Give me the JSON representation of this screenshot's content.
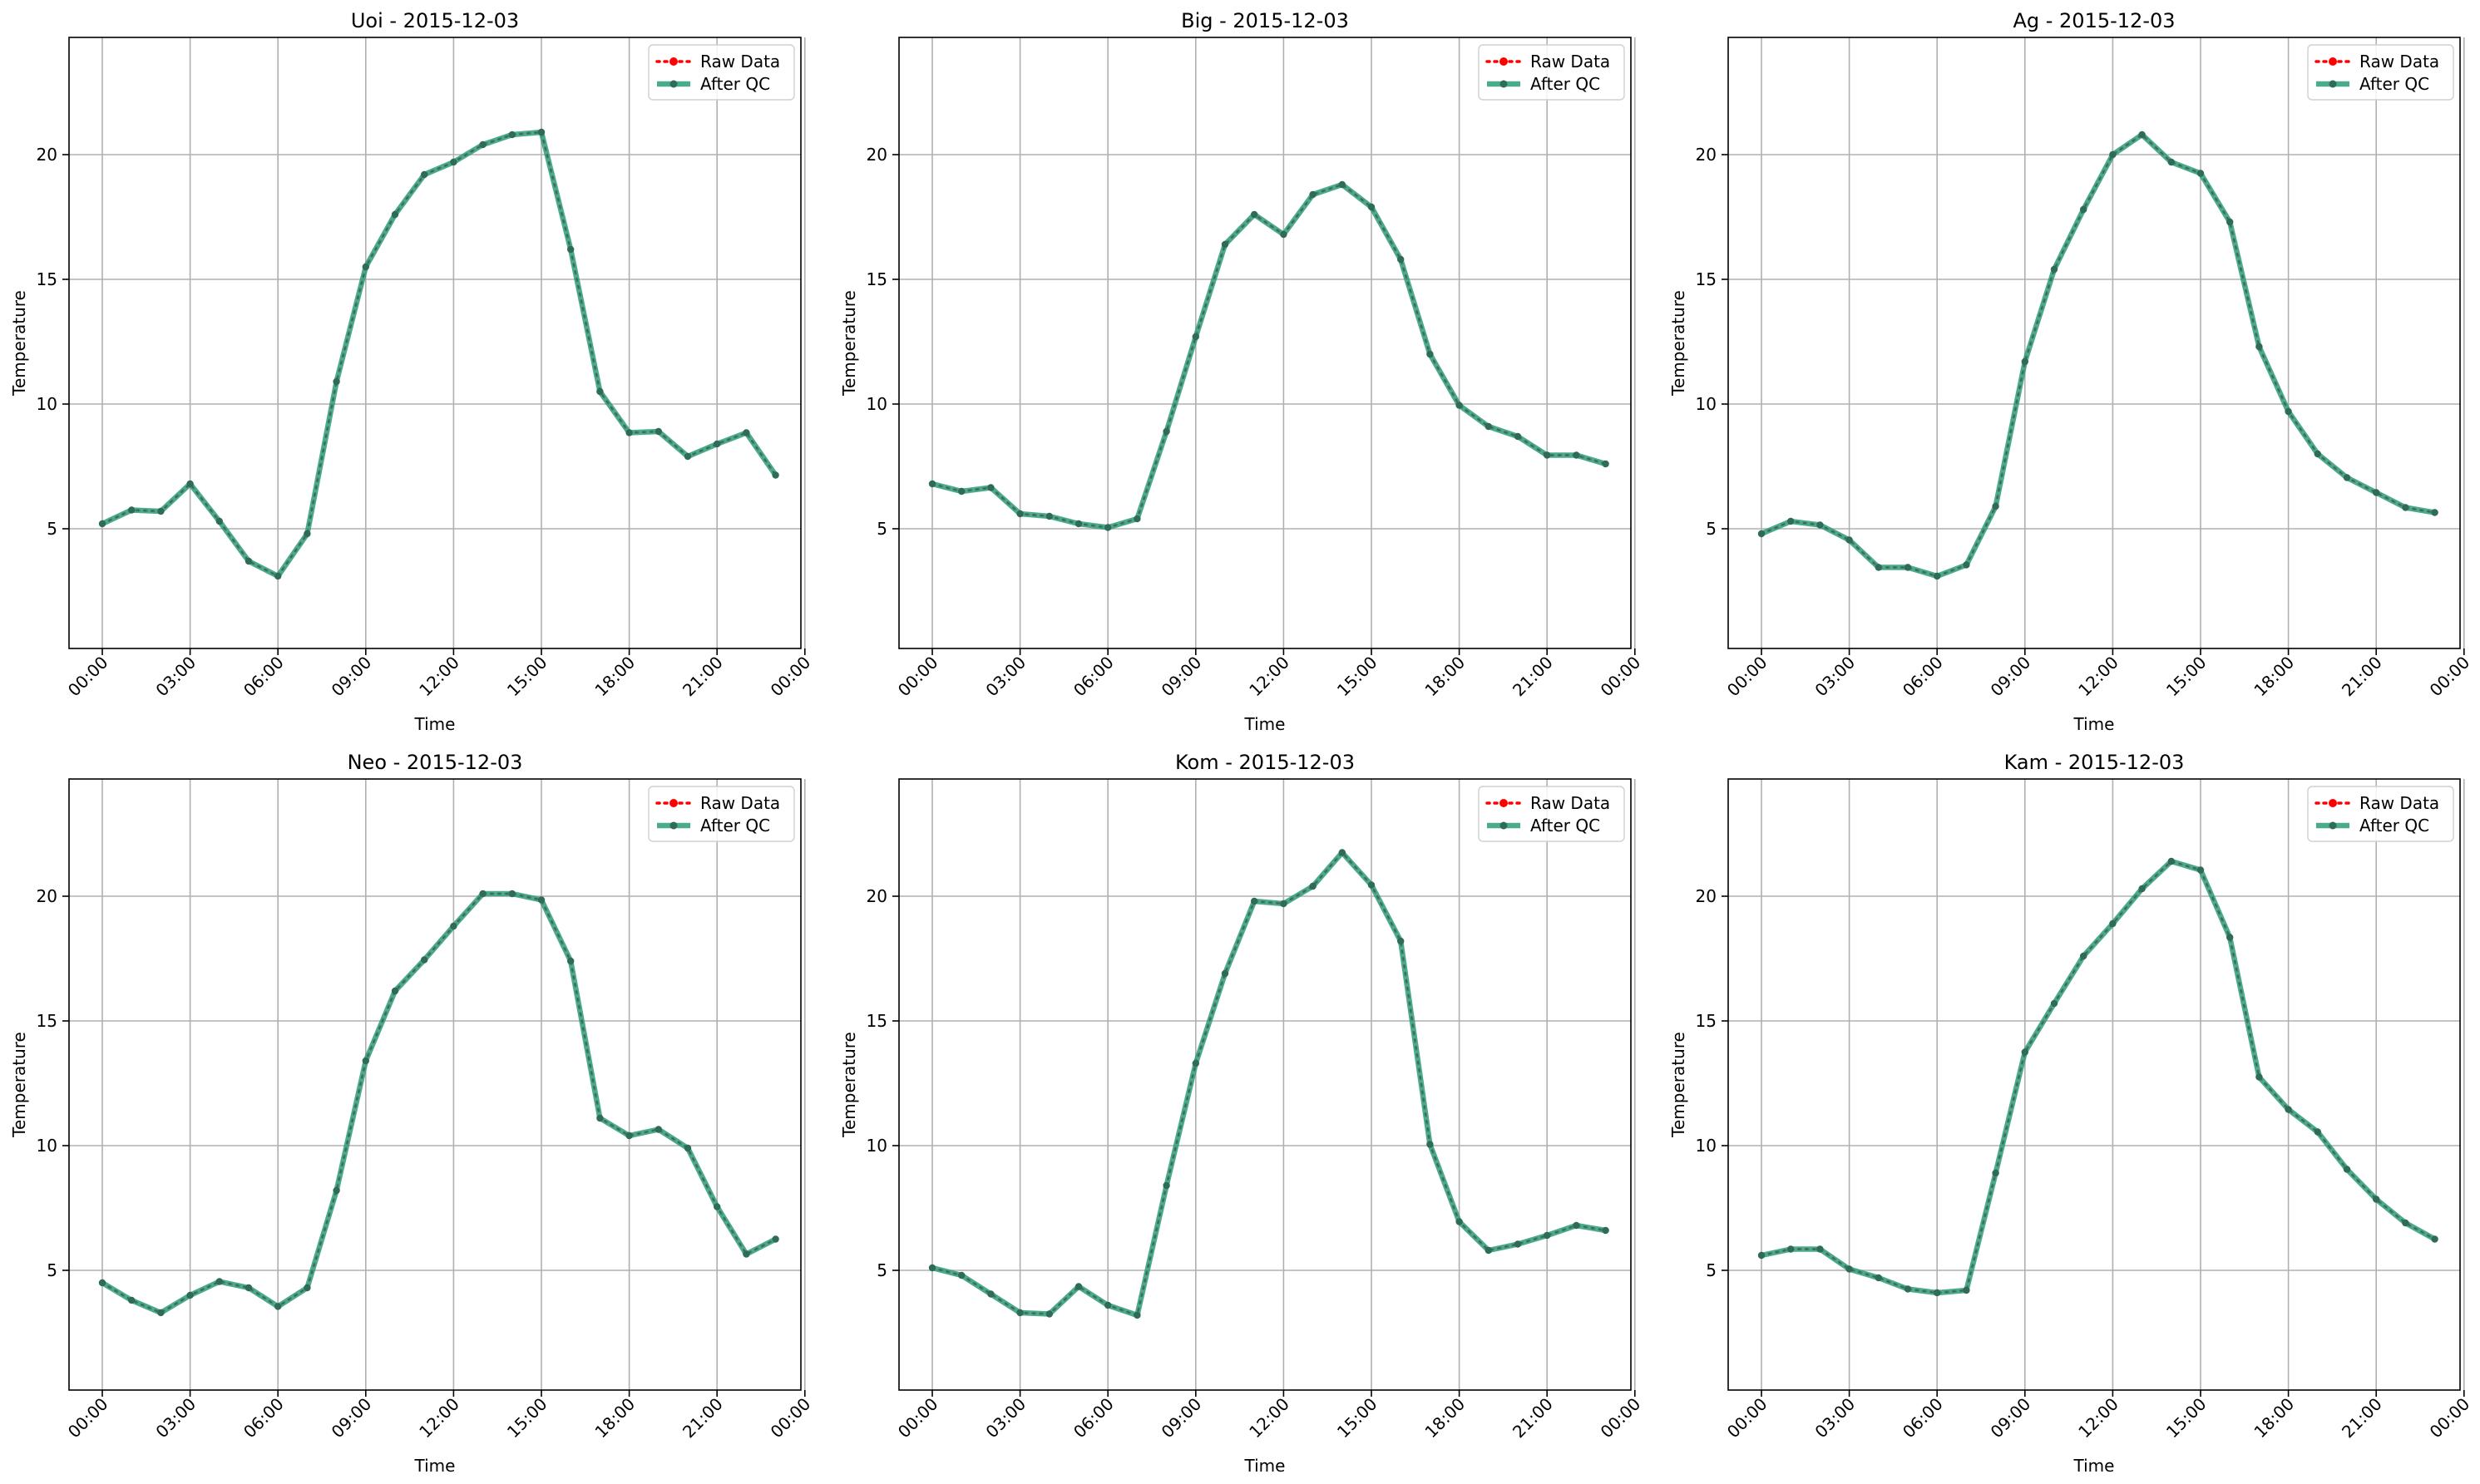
{
  "figure": {
    "xlabel": "Time",
    "ylabel": "Temperature",
    "legend": {
      "raw_label": "Raw Data",
      "qc_label": "After QC",
      "position": "top-right"
    },
    "colors": {
      "raw": "#ff0000",
      "qc": "#2a9d78",
      "marker": "#2f6b5a",
      "grid": "#b0b0b0",
      "axis": "#000000"
    }
  },
  "chart_data": [
    {
      "type": "line",
      "title": "Uoi - 2015-12-03",
      "x": [
        "00:00",
        "01:00",
        "02:00",
        "03:00",
        "04:00",
        "05:00",
        "06:00",
        "07:00",
        "08:00",
        "09:00",
        "10:00",
        "11:00",
        "12:00",
        "13:00",
        "14:00",
        "15:00",
        "16:00",
        "17:00",
        "18:00",
        "19:00",
        "20:00",
        "21:00",
        "22:00",
        "23:00"
      ],
      "series": [
        {
          "name": "Raw Data",
          "values": [
            5.2,
            5.75,
            5.7,
            6.8,
            5.3,
            3.7,
            3.1,
            4.8,
            10.9,
            15.5,
            17.6,
            19.2,
            19.7,
            20.4,
            20.8,
            20.9,
            16.2,
            10.5,
            8.85,
            8.9,
            7.9,
            8.4,
            8.85,
            7.15
          ]
        },
        {
          "name": "After QC",
          "values": [
            5.2,
            5.75,
            5.7,
            6.8,
            5.3,
            3.7,
            3.1,
            4.8,
            10.9,
            15.5,
            17.6,
            19.2,
            19.7,
            20.4,
            20.8,
            20.9,
            16.2,
            10.5,
            8.85,
            8.9,
            7.9,
            8.4,
            8.85,
            7.15
          ]
        }
      ],
      "xlabel": "Time",
      "ylabel": "Temperature",
      "xticks": [
        "00:00",
        "03:00",
        "06:00",
        "09:00",
        "12:00",
        "15:00",
        "18:00",
        "21:00",
        "00:00"
      ],
      "yticks": [
        5,
        10,
        15,
        20
      ],
      "ylim": [
        0.2,
        24.7
      ],
      "grid": true,
      "legend": "top-right"
    },
    {
      "type": "line",
      "title": "Big - 2015-12-03",
      "x": [
        "00:00",
        "01:00",
        "02:00",
        "03:00",
        "04:00",
        "05:00",
        "06:00",
        "07:00",
        "08:00",
        "09:00",
        "10:00",
        "11:00",
        "12:00",
        "13:00",
        "14:00",
        "15:00",
        "16:00",
        "17:00",
        "18:00",
        "19:00",
        "20:00",
        "21:00",
        "22:00",
        "23:00"
      ],
      "series": [
        {
          "name": "Raw Data",
          "values": [
            6.8,
            6.5,
            6.65,
            5.6,
            5.5,
            5.2,
            5.05,
            5.4,
            8.9,
            12.7,
            16.4,
            17.6,
            16.8,
            18.4,
            18.8,
            17.9,
            15.8,
            12.0,
            9.95,
            9.1,
            8.7,
            7.95,
            7.95,
            7.6
          ]
        },
        {
          "name": "After QC",
          "values": [
            6.8,
            6.5,
            6.65,
            5.6,
            5.5,
            5.2,
            5.05,
            5.4,
            8.9,
            12.7,
            16.4,
            17.6,
            16.8,
            18.4,
            18.8,
            17.9,
            15.8,
            12.0,
            9.95,
            9.1,
            8.7,
            7.95,
            7.95,
            7.6
          ]
        }
      ],
      "xlabel": "Time",
      "ylabel": "Temperature",
      "xticks": [
        "00:00",
        "03:00",
        "06:00",
        "09:00",
        "12:00",
        "15:00",
        "18:00",
        "21:00",
        "00:00"
      ],
      "yticks": [
        5,
        10,
        15,
        20
      ],
      "ylim": [
        0.2,
        24.7
      ],
      "grid": true,
      "legend": "top-right"
    },
    {
      "type": "line",
      "title": "Ag - 2015-12-03",
      "x": [
        "00:00",
        "01:00",
        "02:00",
        "03:00",
        "04:00",
        "05:00",
        "06:00",
        "07:00",
        "08:00",
        "09:00",
        "10:00",
        "11:00",
        "12:00",
        "13:00",
        "14:00",
        "15:00",
        "16:00",
        "17:00",
        "18:00",
        "19:00",
        "20:00",
        "21:00",
        "22:00",
        "23:00"
      ],
      "series": [
        {
          "name": "Raw Data",
          "values": [
            4.8,
            5.3,
            5.15,
            4.55,
            3.45,
            3.45,
            3.1,
            3.55,
            5.9,
            11.7,
            15.4,
            17.8,
            20.0,
            20.8,
            19.7,
            19.25,
            17.3,
            12.3,
            9.7,
            8.0,
            7.05,
            6.45,
            5.85,
            5.65
          ]
        },
        {
          "name": "After QC",
          "values": [
            4.8,
            5.3,
            5.15,
            4.55,
            3.45,
            3.45,
            3.1,
            3.55,
            5.9,
            11.7,
            15.4,
            17.8,
            20.0,
            20.8,
            19.7,
            19.25,
            17.3,
            12.3,
            9.7,
            8.0,
            7.05,
            6.45,
            5.85,
            5.65
          ]
        }
      ],
      "xlabel": "Time",
      "ylabel": "Temperature",
      "xticks": [
        "00:00",
        "03:00",
        "06:00",
        "09:00",
        "12:00",
        "15:00",
        "18:00",
        "21:00",
        "00:00"
      ],
      "yticks": [
        5,
        10,
        15,
        20
      ],
      "ylim": [
        0.2,
        24.7
      ],
      "grid": true,
      "legend": "top-right"
    },
    {
      "type": "line",
      "title": "Neo - 2015-12-03",
      "x": [
        "00:00",
        "01:00",
        "02:00",
        "03:00",
        "04:00",
        "05:00",
        "06:00",
        "07:00",
        "08:00",
        "09:00",
        "10:00",
        "11:00",
        "12:00",
        "13:00",
        "14:00",
        "15:00",
        "16:00",
        "17:00",
        "18:00",
        "19:00",
        "20:00",
        "21:00",
        "22:00",
        "23:00"
      ],
      "series": [
        {
          "name": "Raw Data",
          "values": [
            4.5,
            3.8,
            3.3,
            4.0,
            4.55,
            4.3,
            3.55,
            4.3,
            8.2,
            13.4,
            16.2,
            17.45,
            18.8,
            20.1,
            20.1,
            19.85,
            17.4,
            11.1,
            10.4,
            10.65,
            9.9,
            7.55,
            5.65,
            6.25
          ]
        },
        {
          "name": "After QC",
          "values": [
            4.5,
            3.8,
            3.3,
            4.0,
            4.55,
            4.3,
            3.55,
            4.3,
            8.2,
            13.4,
            16.2,
            17.45,
            18.8,
            20.1,
            20.1,
            19.85,
            17.4,
            11.1,
            10.4,
            10.65,
            9.9,
            7.55,
            5.65,
            6.25
          ]
        }
      ],
      "xlabel": "Time",
      "ylabel": "Temperature",
      "xticks": [
        "00:00",
        "03:00",
        "06:00",
        "09:00",
        "12:00",
        "15:00",
        "18:00",
        "21:00",
        "00:00"
      ],
      "yticks": [
        5,
        10,
        15,
        20
      ],
      "ylim": [
        0.2,
        24.7
      ],
      "grid": true,
      "legend": "top-right"
    },
    {
      "type": "line",
      "title": "Kom - 2015-12-03",
      "x": [
        "00:00",
        "01:00",
        "02:00",
        "03:00",
        "04:00",
        "05:00",
        "06:00",
        "07:00",
        "08:00",
        "09:00",
        "10:00",
        "11:00",
        "12:00",
        "13:00",
        "14:00",
        "15:00",
        "16:00",
        "17:00",
        "18:00",
        "19:00",
        "20:00",
        "21:00",
        "22:00",
        "23:00"
      ],
      "series": [
        {
          "name": "Raw Data",
          "values": [
            5.1,
            4.8,
            4.05,
            3.3,
            3.25,
            4.35,
            3.6,
            3.2,
            8.4,
            13.3,
            16.9,
            19.8,
            19.7,
            20.4,
            21.75,
            20.45,
            18.2,
            10.05,
            6.95,
            5.8,
            6.05,
            6.4,
            6.8,
            6.6
          ]
        },
        {
          "name": "After QC",
          "values": [
            5.1,
            4.8,
            4.05,
            3.3,
            3.25,
            4.35,
            3.6,
            3.2,
            8.4,
            13.3,
            16.9,
            19.8,
            19.7,
            20.4,
            21.75,
            20.45,
            18.2,
            10.05,
            6.95,
            5.8,
            6.05,
            6.4,
            6.8,
            6.6
          ]
        }
      ],
      "xlabel": "Time",
      "ylabel": "Temperature",
      "xticks": [
        "00:00",
        "03:00",
        "06:00",
        "09:00",
        "12:00",
        "15:00",
        "18:00",
        "21:00",
        "00:00"
      ],
      "yticks": [
        5,
        10,
        15,
        20
      ],
      "ylim": [
        0.2,
        24.7
      ],
      "grid": true,
      "legend": "top-right"
    },
    {
      "type": "line",
      "title": "Kam - 2015-12-03",
      "x": [
        "00:00",
        "01:00",
        "02:00",
        "03:00",
        "04:00",
        "05:00",
        "06:00",
        "07:00",
        "08:00",
        "09:00",
        "10:00",
        "11:00",
        "12:00",
        "13:00",
        "14:00",
        "15:00",
        "16:00",
        "17:00",
        "18:00",
        "19:00",
        "20:00",
        "21:00",
        "22:00",
        "23:00"
      ],
      "series": [
        {
          "name": "Raw Data",
          "values": [
            5.6,
            5.85,
            5.85,
            5.05,
            4.7,
            4.25,
            4.1,
            4.2,
            8.9,
            13.75,
            15.7,
            17.6,
            18.9,
            20.3,
            21.4,
            21.05,
            18.35,
            12.75,
            11.45,
            10.55,
            9.05,
            7.85,
            6.9,
            6.25
          ]
        },
        {
          "name": "After QC",
          "values": [
            5.6,
            5.85,
            5.85,
            5.05,
            4.7,
            4.25,
            4.1,
            4.2,
            8.9,
            13.75,
            15.7,
            17.6,
            18.9,
            20.3,
            21.4,
            21.05,
            18.35,
            12.75,
            11.45,
            10.55,
            9.05,
            7.85,
            6.9,
            6.25
          ]
        }
      ],
      "xlabel": "Time",
      "ylabel": "Temperature",
      "xticks": [
        "00:00",
        "03:00",
        "06:00",
        "09:00",
        "12:00",
        "15:00",
        "18:00",
        "21:00",
        "00:00"
      ],
      "yticks": [
        5,
        10,
        15,
        20
      ],
      "ylim": [
        0.2,
        24.7
      ],
      "grid": true,
      "legend": "top-right"
    }
  ]
}
